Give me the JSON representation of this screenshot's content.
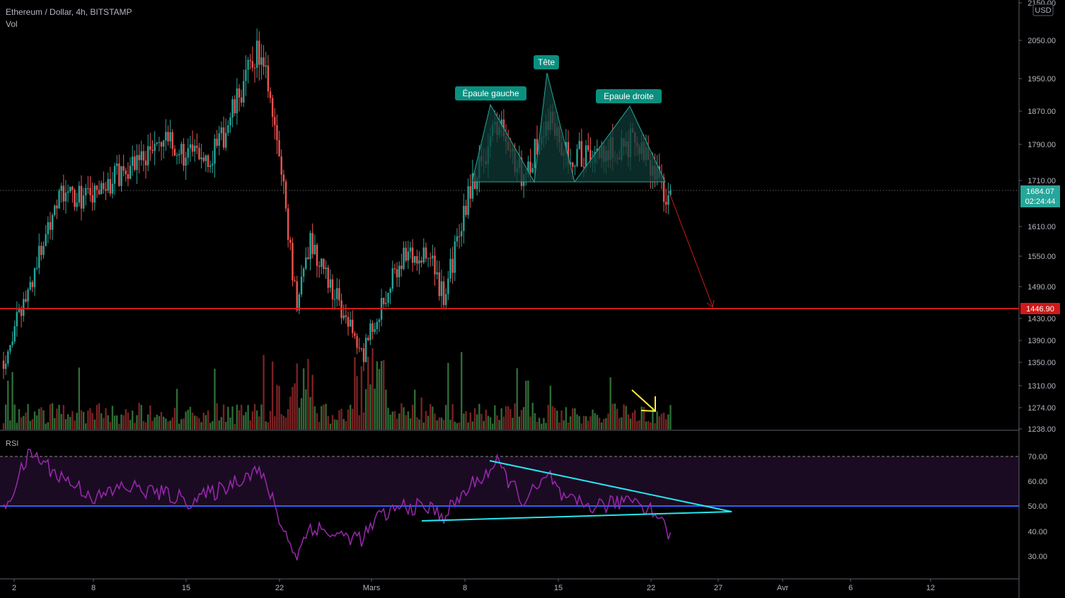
{
  "header": {
    "symbol": "Ethereum / Dollar, 4h, BITSTAMP",
    "volume_label": "Vol",
    "rsi_label": "RSI"
  },
  "price_scale": {
    "currency": "USD",
    "last_price": "1684.07",
    "countdown": "02:24:44",
    "target_label": "1446.90",
    "ticks": [
      "2150.00",
      "2050.00",
      "1950.00",
      "1870.00",
      "1790.00",
      "1710.00",
      "1610.00",
      "1550.00",
      "1490.00",
      "1430.00",
      "1390.00",
      "1350.00",
      "1310.00",
      "1274.00",
      "1238.00"
    ]
  },
  "rsi_scale": {
    "ticks": [
      "70.00",
      "60.00",
      "50.00",
      "40.00",
      "30.00"
    ]
  },
  "time_axis": {
    "ticks": [
      "2",
      "8",
      "15",
      "22",
      "Mars",
      "8",
      "15",
      "22",
      "27",
      "Avr",
      "6",
      "12"
    ]
  },
  "annotations": {
    "left_shoulder": "Épaule gauche",
    "head": "Tête",
    "right_shoulder": "Epaule droite"
  },
  "colors": {
    "background": "#000000",
    "up": "#26a69a",
    "down": "#ef5350",
    "target_line": "#d01919",
    "rsi_line": "#9c27b0",
    "rsi_band": "#1a0b22",
    "rsi_midline": "#2962ff",
    "trendline": "#26e6f0",
    "pattern_fill": "#0e3a36",
    "volume_up": "#2f6b35",
    "volume_down": "#7a2222",
    "arrow_yellow": "#ffeb3b"
  },
  "chart_data": {
    "type": "candlestick",
    "interval": "4h",
    "series": [
      {
        "name": "Ethereum / Dollar",
        "values": [
          {
            "date": "2021-02-01",
            "close": 1330
          },
          {
            "date": "2021-02-03",
            "close": 1500
          },
          {
            "date": "2021-02-05",
            "close": 1700
          },
          {
            "date": "2021-02-08",
            "close": 1700
          },
          {
            "date": "2021-02-10",
            "close": 1760
          },
          {
            "date": "2021-02-13",
            "close": 1820
          },
          {
            "date": "2021-02-15",
            "close": 1790
          },
          {
            "date": "2021-02-17",
            "close": 1800
          },
          {
            "date": "2021-02-19",
            "close": 1950
          },
          {
            "date": "2021-02-20",
            "close": 2030
          },
          {
            "date": "2021-02-21",
            "close": 1930
          },
          {
            "date": "2021-02-22",
            "close": 1710
          },
          {
            "date": "2021-02-23",
            "close": 1450
          },
          {
            "date": "2021-02-24",
            "close": 1600
          },
          {
            "date": "2021-02-26",
            "close": 1470
          },
          {
            "date": "2021-02-28",
            "close": 1350
          },
          {
            "date": "2021-03-01",
            "close": 1430
          },
          {
            "date": "2021-03-03",
            "close": 1570
          },
          {
            "date": "2021-03-05",
            "close": 1560
          },
          {
            "date": "2021-03-06",
            "close": 1470
          },
          {
            "date": "2021-03-08",
            "close": 1720
          },
          {
            "date": "2021-03-10",
            "close": 1860
          },
          {
            "date": "2021-03-12",
            "close": 1740
          },
          {
            "date": "2021-03-14",
            "close": 1880
          },
          {
            "date": "2021-03-15",
            "close": 1800
          },
          {
            "date": "2021-03-17",
            "close": 1790
          },
          {
            "date": "2021-03-19",
            "close": 1810
          },
          {
            "date": "2021-03-20",
            "close": 1820
          },
          {
            "date": "2021-03-22",
            "close": 1750
          },
          {
            "date": "2021-03-23",
            "close": 1684.07
          }
        ]
      }
    ],
    "target_price": 1446.9,
    "last_price": 1684.07,
    "ylim": [
      1238,
      2150
    ],
    "pattern": "head-and-shoulders",
    "rsi": {
      "ylim": [
        20,
        75
      ],
      "overbought": 70,
      "midline": 50,
      "values": [
        {
          "date": "2021-02-01",
          "value": 48
        },
        {
          "date": "2021-02-03",
          "value": 72
        },
        {
          "date": "2021-02-05",
          "value": 63
        },
        {
          "date": "2021-02-08",
          "value": 53
        },
        {
          "date": "2021-02-10",
          "value": 58
        },
        {
          "date": "2021-02-13",
          "value": 55
        },
        {
          "date": "2021-02-15",
          "value": 52
        },
        {
          "date": "2021-02-17",
          "value": 56
        },
        {
          "date": "2021-02-19",
          "value": 62
        },
        {
          "date": "2021-02-20",
          "value": 65
        },
        {
          "date": "2021-02-21",
          "value": 55
        },
        {
          "date": "2021-02-22",
          "value": 40
        },
        {
          "date": "2021-02-23",
          "value": 30
        },
        {
          "date": "2021-02-24",
          "value": 42
        },
        {
          "date": "2021-02-26",
          "value": 38
        },
        {
          "date": "2021-02-28",
          "value": 37
        },
        {
          "date": "2021-03-01",
          "value": 45
        },
        {
          "date": "2021-03-03",
          "value": 50
        },
        {
          "date": "2021-03-05",
          "value": 49
        },
        {
          "date": "2021-03-06",
          "value": 46
        },
        {
          "date": "2021-03-08",
          "value": 58
        },
        {
          "date": "2021-03-10",
          "value": 67
        },
        {
          "date": "2021-03-12",
          "value": 52
        },
        {
          "date": "2021-03-14",
          "value": 62
        },
        {
          "date": "2021-03-15",
          "value": 52
        },
        {
          "date": "2021-03-17",
          "value": 50
        },
        {
          "date": "2021-03-19",
          "value": 51
        },
        {
          "date": "2021-03-20",
          "value": 54
        },
        {
          "date": "2021-03-22",
          "value": 47
        },
        {
          "date": "2021-03-23",
          "value": 38
        }
      ]
    }
  }
}
